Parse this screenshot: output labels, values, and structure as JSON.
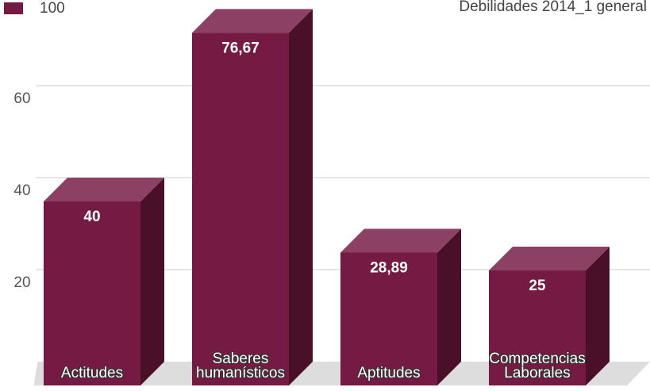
{
  "chart_data": {
    "type": "bar3d",
    "title": "Debilidades 2014_1 general",
    "legend": [
      "100"
    ],
    "categories": [
      "Actitudes",
      "Saberes\nhumanísticos",
      "Aptitudes",
      "Competencias\nLaborales"
    ],
    "series": [
      {
        "name": "100",
        "color": "#751a42",
        "values": [
          40,
          76.67,
          28.89,
          25
        ]
      }
    ],
    "value_labels": [
      "40",
      "76,67",
      "28,89",
      "25"
    ],
    "ylim": [
      0,
      80
    ],
    "yticks": [
      20,
      40,
      60
    ],
    "grid": true
  }
}
